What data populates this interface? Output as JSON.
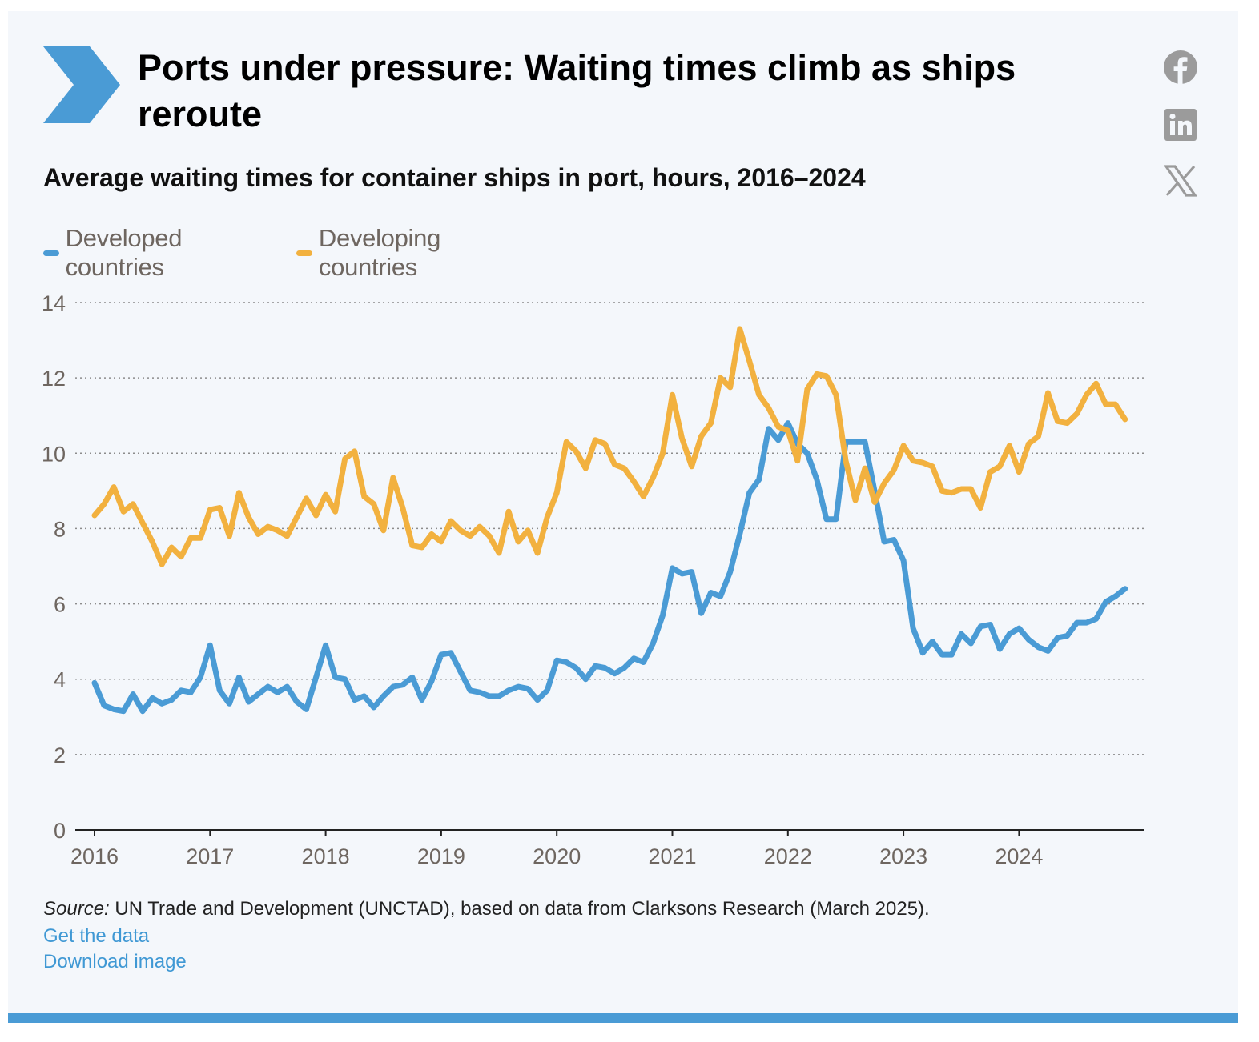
{
  "header": {
    "title": "Ports under pressure: Waiting times climb as ships reroute",
    "subtitle": "Average waiting times for container ships in port, hours, 2016–2024"
  },
  "social": {
    "icons": [
      "facebook-icon",
      "linkedin-icon",
      "x-icon"
    ],
    "color": "#9b9b9b"
  },
  "colors": {
    "developed": "#4a9bd5",
    "developing": "#f2b13f",
    "chevron": "#4a9bd5",
    "axis_text": "#6e6660",
    "link": "#3f98d4"
  },
  "chart_data": {
    "type": "line",
    "title": "Average waiting times for container ships in port, hours, 2016–2024",
    "xlabel": "",
    "ylabel": "",
    "ylim": [
      0,
      14
    ],
    "yticks": [
      "0",
      "2",
      "4",
      "6",
      "8",
      "10",
      "12",
      "14"
    ],
    "xticks": [
      "2016",
      "2017",
      "2018",
      "2019",
      "2020",
      "2021",
      "2022",
      "2023",
      "2024"
    ],
    "xlim_year": [
      2016,
      2025.08
    ],
    "grid": true,
    "legend_position": "top-left",
    "x_frequency": "monthly, Jan 2016 – Dec 2024",
    "series": [
      {
        "name": "Developed countries",
        "color": "#4a9bd5",
        "values": [
          3.9,
          3.3,
          3.2,
          3.15,
          3.6,
          3.15,
          3.5,
          3.35,
          3.45,
          3.7,
          3.65,
          4.05,
          4.9,
          3.7,
          3.35,
          4.05,
          3.4,
          3.6,
          3.8,
          3.65,
          3.8,
          3.4,
          3.2,
          4.05,
          4.9,
          4.05,
          4.0,
          3.45,
          3.55,
          3.25,
          3.55,
          3.8,
          3.85,
          4.05,
          3.45,
          3.95,
          4.65,
          4.7,
          4.2,
          3.7,
          3.65,
          3.55,
          3.55,
          3.7,
          3.8,
          3.75,
          3.45,
          3.7,
          4.5,
          4.45,
          4.3,
          4.0,
          4.35,
          4.3,
          4.15,
          4.3,
          4.55,
          4.45,
          4.95,
          5.7,
          6.95,
          6.8,
          6.85,
          5.75,
          6.3,
          6.2,
          6.85,
          7.85,
          8.95,
          9.3,
          10.65,
          10.35,
          10.8,
          10.25,
          10.0,
          9.3,
          8.25,
          8.25,
          10.3,
          10.3,
          10.3,
          9.0,
          7.65,
          7.7,
          7.15,
          5.35,
          4.7,
          5.0,
          4.65,
          4.65,
          5.2,
          4.95,
          5.4,
          5.45,
          4.8,
          5.2,
          5.35,
          5.05,
          4.85,
          4.75,
          5.1,
          5.15,
          5.5,
          5.5,
          5.6,
          6.05,
          6.2,
          6.4
        ]
      },
      {
        "name": "Developing countries",
        "color": "#f2b13f",
        "values": [
          8.35,
          8.65,
          9.1,
          8.45,
          8.65,
          8.15,
          7.65,
          7.05,
          7.5,
          7.25,
          7.75,
          7.75,
          8.5,
          8.55,
          7.8,
          8.95,
          8.3,
          7.85,
          8.05,
          7.95,
          7.8,
          8.3,
          8.8,
          8.35,
          8.9,
          8.45,
          9.85,
          10.05,
          8.85,
          8.65,
          7.95,
          9.35,
          8.55,
          7.55,
          7.5,
          7.85,
          7.65,
          8.2,
          7.95,
          7.8,
          8.05,
          7.8,
          7.35,
          8.45,
          7.65,
          7.95,
          7.35,
          8.3,
          8.95,
          10.3,
          10.05,
          9.6,
          10.35,
          10.25,
          9.7,
          9.6,
          9.25,
          8.85,
          9.35,
          10.0,
          11.55,
          10.4,
          9.65,
          10.45,
          10.8,
          12.0,
          11.75,
          13.3,
          12.45,
          11.55,
          11.2,
          10.7,
          10.6,
          9.8,
          11.7,
          12.1,
          12.05,
          11.55,
          9.8,
          8.75,
          9.6,
          8.7,
          9.2,
          9.55,
          10.2,
          9.8,
          9.75,
          9.65,
          9.0,
          8.95,
          9.05,
          9.05,
          8.55,
          9.5,
          9.65,
          10.2,
          9.5,
          10.25,
          10.45,
          11.6,
          10.85,
          10.8,
          11.05,
          11.55,
          11.85,
          11.3,
          11.3,
          10.9
        ]
      }
    ]
  },
  "footer": {
    "source_label": "Source:",
    "source_text": " UN Trade and Development (UNCTAD), based on data from Clarksons Research (March 2025).",
    "get_data": "Get the data",
    "download_image": "Download image"
  }
}
